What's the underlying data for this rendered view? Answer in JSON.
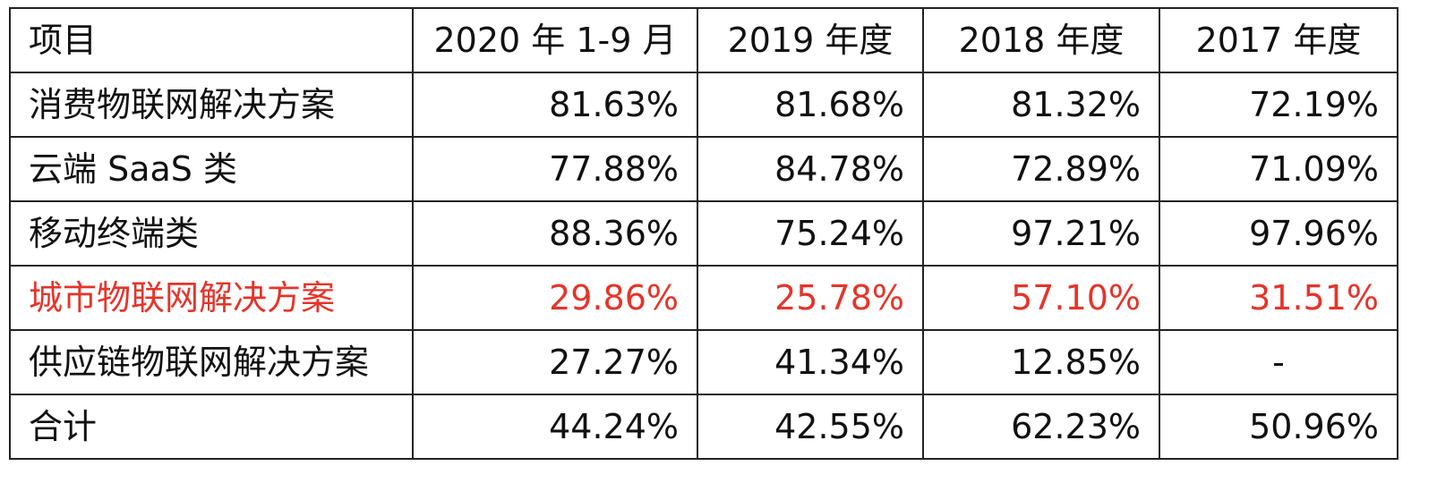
{
  "table": {
    "headers": [
      "项目",
      "2020 年 1-9 月",
      "2019 年度",
      "2018 年度",
      "2017 年度"
    ],
    "highlight_color": "#e5342a",
    "rows": [
      {
        "item": "消费物联网解决方案",
        "values": [
          "81.63%",
          "81.68%",
          "81.32%",
          "72.19%"
        ],
        "highlight": false
      },
      {
        "item": "云端 SaaS 类",
        "values": [
          "77.88%",
          "84.78%",
          "72.89%",
          "71.09%"
        ],
        "highlight": false
      },
      {
        "item": "移动终端类",
        "values": [
          "88.36%",
          "75.24%",
          "97.21%",
          "97.96%"
        ],
        "highlight": false
      },
      {
        "item": "城市物联网解决方案",
        "values": [
          "29.86%",
          "25.78%",
          "57.10%",
          "31.51%"
        ],
        "highlight": true
      },
      {
        "item": "供应链物联网解决方案",
        "values": [
          "27.27%",
          "41.34%",
          "12.85%",
          "-"
        ],
        "highlight": false
      },
      {
        "item": "合计",
        "values": [
          "44.24%",
          "42.55%",
          "62.23%",
          "50.96%"
        ],
        "highlight": false
      }
    ]
  }
}
